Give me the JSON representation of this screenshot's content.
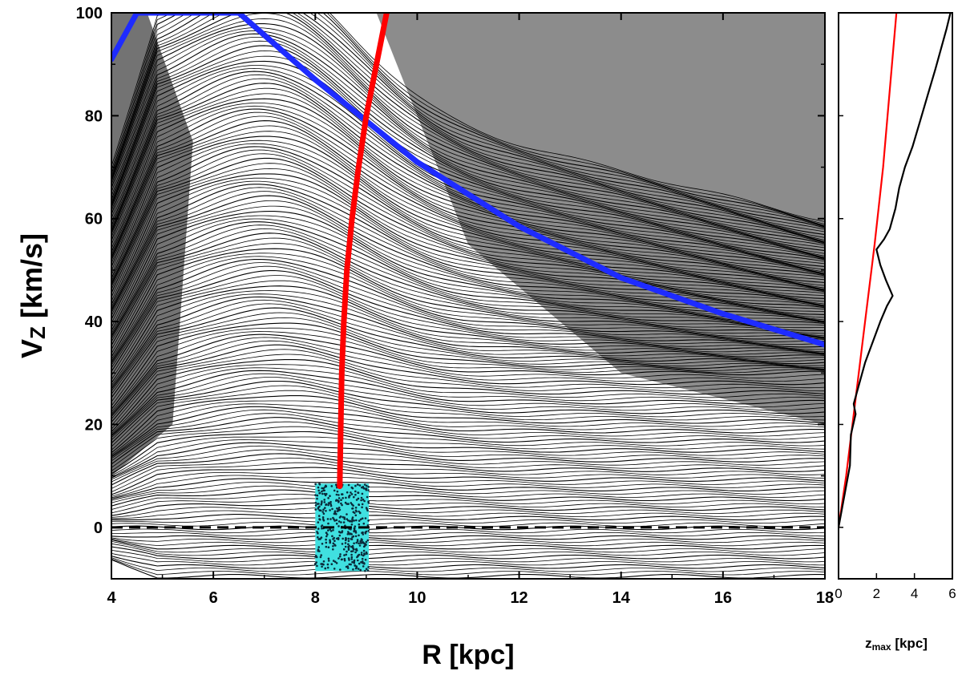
{
  "colors": {
    "background": "#ffffff",
    "contour": "#000000",
    "blue_curve": "#1e2bff",
    "red_curve": "#ff0000",
    "box_fill": "#40e0e0",
    "box_dots": "#0a2a3a",
    "zmax_black": "#000000",
    "zmax_red": "#ff0000"
  },
  "chart_data": [
    {
      "type": "line",
      "panel": "main",
      "xlabel": "R [kpc]",
      "ylabel": "Vz [km/s]",
      "ylabel_main": "V",
      "ylabel_sub": "Z",
      "ylabel_rest": " [km/s]",
      "xlim": [
        4,
        18
      ],
      "ylim": [
        -10,
        100
      ],
      "xticks": [
        4,
        6,
        8,
        10,
        12,
        14,
        16,
        18
      ],
      "yticks": [
        0,
        20,
        40,
        60,
        80,
        100
      ],
      "background": "dense black contour lines (phase-space orbit map)",
      "series": [
        {
          "color": "blue",
          "x": [
            4.0,
            4.5,
            6.5,
            8.0,
            9.0,
            10.0,
            12.0,
            14.0,
            16.0,
            18.0
          ],
          "y": [
            91,
            100,
            100,
            87,
            79,
            71,
            58.5,
            48.5,
            41.5,
            35.5
          ]
        },
        {
          "color": "red",
          "x": [
            8.48,
            8.5,
            8.52,
            8.56,
            8.62,
            8.72,
            8.85,
            9.0,
            9.2,
            9.4
          ],
          "y": [
            8,
            20,
            30,
            40,
            50,
            60,
            70,
            80,
            90,
            100
          ]
        }
      ],
      "annotations": [
        {
          "kind": "dashed_horizontal_line",
          "y": 0,
          "x_range": [
            4,
            18
          ]
        },
        {
          "kind": "scatter_box",
          "x_range": [
            8.0,
            9.05
          ],
          "y_range": [
            -8.5,
            8.5
          ],
          "color": "cyan"
        }
      ]
    },
    {
      "type": "line",
      "panel": "side",
      "xlabel": "zmax [kpc]",
      "xlabel_main": "z",
      "xlabel_sub": "max",
      "xlabel_rest": " [kpc]",
      "xlim": [
        0,
        6
      ],
      "ylim": [
        -10,
        100
      ],
      "xticks": [
        0,
        2,
        4,
        6
      ],
      "series": [
        {
          "color": "red",
          "x": [
            0,
            0.4,
            0.9,
            1.4,
            1.9,
            2.35,
            2.7,
            3.05
          ],
          "y": [
            0,
            10,
            25,
            40,
            55,
            70,
            85,
            100
          ]
        },
        {
          "color": "black",
          "x": [
            0,
            0.3,
            0.6,
            0.65,
            0.9,
            0.8,
            1.1,
            1.4,
            1.8,
            2.2,
            2.55,
            2.85,
            2.5,
            2.2,
            2.0,
            2.4,
            2.7,
            3.0,
            3.2,
            3.5,
            3.9,
            4.3,
            4.7,
            5.1,
            5.4,
            5.7,
            5.9
          ],
          "y": [
            0,
            6,
            12,
            18,
            22,
            24,
            28,
            32,
            36,
            40,
            43,
            45,
            48,
            51,
            54,
            56,
            58,
            62,
            66,
            70,
            74,
            79,
            84,
            89,
            93,
            97,
            100
          ]
        }
      ]
    }
  ]
}
